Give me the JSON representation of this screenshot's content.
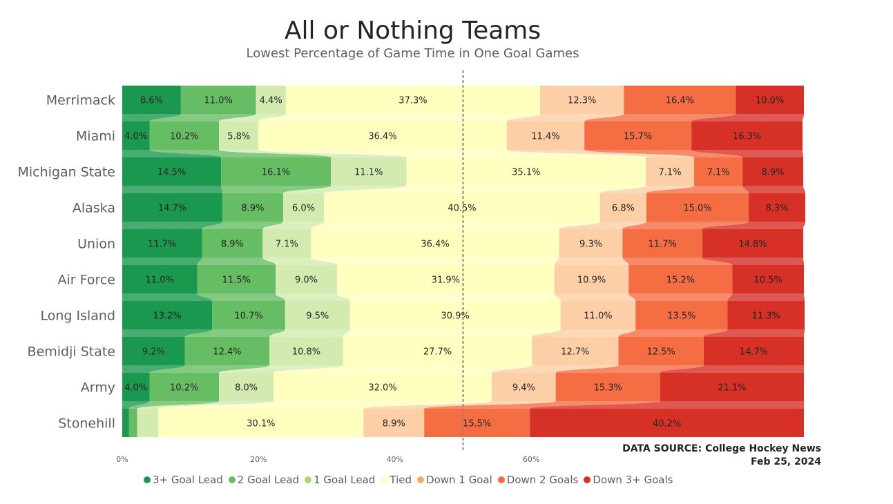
{
  "title": "All or Nothing Teams",
  "subtitle": "Lowest Percentage of Game Time in One Goal Games",
  "source": "DATA SOURCE: College Hockey News",
  "date": "Feb 25, 2024",
  "colors": [
    "#1a9850",
    "#66bd63",
    "#d3ebb0",
    "#ffffc0",
    "#fdcfa6",
    "#f46d43",
    "#d73027"
  ],
  "legend_dot_colors": [
    "#1a9850",
    "#66bd63",
    "#a6d96a",
    "#ffffbf",
    "#fdae61",
    "#f46d43",
    "#d73027"
  ],
  "chart_data": {
    "type": "bar",
    "orientation": "horizontal",
    "stacked": "100%",
    "categories": [
      "Merrimack",
      "Miami",
      "Michigan State",
      "Alaska",
      "Union",
      "Air Force",
      "Long Island",
      "Bemidji State",
      "Army",
      "Stonehill"
    ],
    "series": [
      {
        "name": "3+ Goal Lead",
        "values": [
          8.6,
          4.0,
          14.5,
          14.7,
          11.7,
          11.0,
          13.2,
          9.2,
          4.0,
          1.0
        ],
        "labels": [
          "8.6%",
          "4.0%",
          "14.5%",
          "14.7%",
          "11.7%",
          "11.0%",
          "13.2%",
          "9.2%",
          "4.0%",
          ""
        ]
      },
      {
        "name": "2 Goal Lead",
        "values": [
          11.0,
          10.2,
          16.1,
          8.9,
          8.9,
          11.5,
          10.7,
          12.4,
          10.2,
          1.2
        ],
        "labels": [
          "11.0%",
          "10.2%",
          "16.1%",
          "8.9%",
          "8.9%",
          "11.5%",
          "10.7%",
          "12.4%",
          "10.2%",
          ""
        ]
      },
      {
        "name": "1 Goal Lead",
        "values": [
          4.4,
          5.8,
          11.1,
          6.0,
          7.1,
          9.0,
          9.5,
          10.8,
          8.0,
          3.1
        ],
        "labels": [
          "4.4%",
          "5.8%",
          "11.1%",
          "6.0%",
          "7.1%",
          "9.0%",
          "9.5%",
          "10.8%",
          "8.0%",
          ""
        ]
      },
      {
        "name": "Tied",
        "values": [
          37.3,
          36.4,
          35.1,
          40.5,
          36.4,
          31.9,
          30.9,
          27.7,
          32.0,
          30.1
        ],
        "labels": [
          "37.3%",
          "36.4%",
          "35.1%",
          "40.5%",
          "36.4%",
          "31.9%",
          "30.9%",
          "27.7%",
          "32.0%",
          "30.1%"
        ]
      },
      {
        "name": "Down 1 Goal",
        "values": [
          12.3,
          11.4,
          7.1,
          6.8,
          9.3,
          10.9,
          11.0,
          12.7,
          9.4,
          8.9
        ],
        "labels": [
          "12.3%",
          "11.4%",
          "7.1%",
          "6.8%",
          "9.3%",
          "10.9%",
          "11.0%",
          "12.7%",
          "9.4%",
          "8.9%"
        ]
      },
      {
        "name": "Down 2 Goals",
        "values": [
          16.4,
          15.7,
          7.1,
          15.0,
          11.7,
          15.2,
          13.5,
          12.5,
          15.3,
          15.5
        ],
        "labels": [
          "16.4%",
          "15.7%",
          "7.1%",
          "15.0%",
          "11.7%",
          "15.2%",
          "13.5%",
          "12.5%",
          "15.3%",
          "15.5%"
        ]
      },
      {
        "name": "Down 3+ Goals",
        "values": [
          10.0,
          16.3,
          8.9,
          8.3,
          14.8,
          10.5,
          11.3,
          14.7,
          21.1,
          40.2
        ],
        "labels": [
          "10.0%",
          "16.3%",
          "8.9%",
          "8.3%",
          "14.8%",
          "10.5%",
          "11.3%",
          "14.7%",
          "21.1%",
          "40.2%"
        ]
      }
    ],
    "x_ticks": [
      "0%",
      "20%",
      "40%",
      "60%"
    ],
    "xlim": [
      0,
      100
    ],
    "reference_line": 50,
    "grid": false,
    "legend_position": "bottom"
  }
}
